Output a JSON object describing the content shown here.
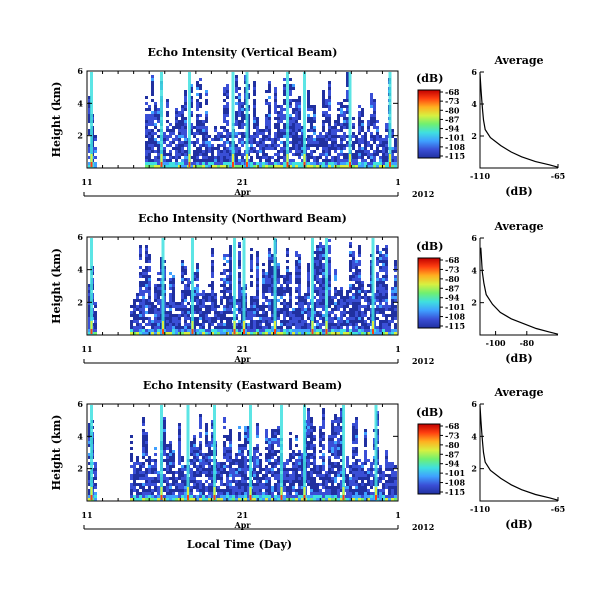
{
  "shared": {
    "x_axis_label": "Local Time (Day)",
    "month_label": "Apr",
    "year_label": "2012",
    "colorbar_unit": "(dB)",
    "colorbar_ticks": [
      "-68",
      "-73",
      "-80",
      "-87",
      "-94",
      "-101",
      "-108",
      "-115"
    ],
    "average_xlabel": "(dB)",
    "colormap": [
      "#2030a0",
      "#3a4fd6",
      "#3fa0ff",
      "#3fe0e0",
      "#70f070",
      "#d8f040",
      "#ffb020",
      "#ff4010",
      "#c00000"
    ]
  },
  "chart_data": [
    {
      "type": "heatmap",
      "title": "Echo Intensity (Vertical Beam)",
      "ylabel": "Height (km)",
      "ylim": [
        0,
        6
      ],
      "y_ticks": [
        "2",
        "4",
        "6"
      ],
      "x_ticks": [
        "11",
        "21",
        "1"
      ],
      "x_range_days": [
        11,
        31
      ],
      "colorbar_range_db": [
        -115,
        -68
      ],
      "gap_days": [
        [
          11.5,
          14.6
        ]
      ],
      "event_days": [
        11.3,
        15.8,
        17.6,
        20.4,
        21.3,
        23.9,
        25.0,
        27.9,
        30.5
      ],
      "cloud_density": 0.78
    },
    {
      "type": "heatmap",
      "title": "Echo Intensity (Northward Beam)",
      "ylabel": "Height (km)",
      "ylim": [
        0,
        6
      ],
      "y_ticks": [
        "2",
        "4",
        "6"
      ],
      "x_ticks": [
        "11",
        "21",
        "1"
      ],
      "x_range_days": [
        11,
        31
      ],
      "colorbar_range_db": [
        -115,
        -68
      ],
      "gap_days": [
        [
          11.5,
          13.7
        ]
      ],
      "event_days": [
        11.3,
        15.9,
        17.8,
        20.5,
        21.1,
        23.1,
        25.5,
        26.4,
        29.4
      ],
      "cloud_density": 0.84
    },
    {
      "type": "heatmap",
      "title": "Echo Intensity (Eastward Beam)",
      "ylabel": "Height (km)",
      "ylim": [
        0,
        6
      ],
      "y_ticks": [
        "2",
        "4",
        "6"
      ],
      "x_ticks": [
        "11",
        "21",
        "1"
      ],
      "x_range_days": [
        11,
        31
      ],
      "colorbar_range_db": [
        -115,
        -68
      ],
      "gap_days": [
        [
          11.5,
          13.7
        ]
      ],
      "event_days": [
        11.3,
        15.8,
        17.5,
        19.2,
        21.5,
        23.5,
        25.0,
        27.5,
        29.6
      ],
      "cloud_density": 0.82
    },
    {
      "type": "line",
      "title": "Average",
      "xlabel": "(dB)",
      "xlim": [
        -110,
        -65
      ],
      "x_ticks": [
        "-110",
        "-65"
      ],
      "ylim": [
        0,
        6
      ],
      "y_ticks": [
        "2",
        "4",
        "6"
      ],
      "x": [
        -65,
        -70,
        -78,
        -86,
        -92,
        -98,
        -104,
        -107,
        -108,
        -108.5,
        -109,
        -109.5,
        -110
      ],
      "y": [
        0.05,
        0.2,
        0.4,
        0.7,
        1.0,
        1.4,
        1.9,
        2.4,
        3.0,
        3.6,
        4.3,
        5.0,
        5.9
      ]
    },
    {
      "type": "line",
      "title": "Average",
      "xlabel": "(dB)",
      "xlim": [
        -110,
        -60
      ],
      "x_ticks": [
        "-100",
        "-80"
      ],
      "ylim": [
        0,
        6
      ],
      "y_ticks": [
        "2",
        "4",
        "6"
      ],
      "x": [
        -60,
        -66,
        -74,
        -82,
        -90,
        -97,
        -102,
        -106,
        -107.5,
        -108.5,
        -109,
        -109.5
      ],
      "y": [
        0.05,
        0.2,
        0.4,
        0.7,
        1.0,
        1.4,
        1.9,
        2.5,
        3.2,
        3.9,
        4.6,
        5.4
      ]
    },
    {
      "type": "line",
      "title": "Average",
      "xlabel": "(dB)",
      "xlim": [
        -110,
        -65
      ],
      "x_ticks": [
        "-110",
        "-65"
      ],
      "ylim": [
        0,
        6
      ],
      "y_ticks": [
        "2",
        "4",
        "6"
      ],
      "x": [
        -65,
        -70,
        -78,
        -86,
        -92,
        -98,
        -104,
        -107,
        -108,
        -108.5,
        -109,
        -109.5,
        -110
      ],
      "y": [
        0.05,
        0.2,
        0.4,
        0.7,
        1.0,
        1.4,
        1.9,
        2.4,
        3.0,
        3.6,
        4.3,
        5.0,
        5.9
      ]
    }
  ]
}
